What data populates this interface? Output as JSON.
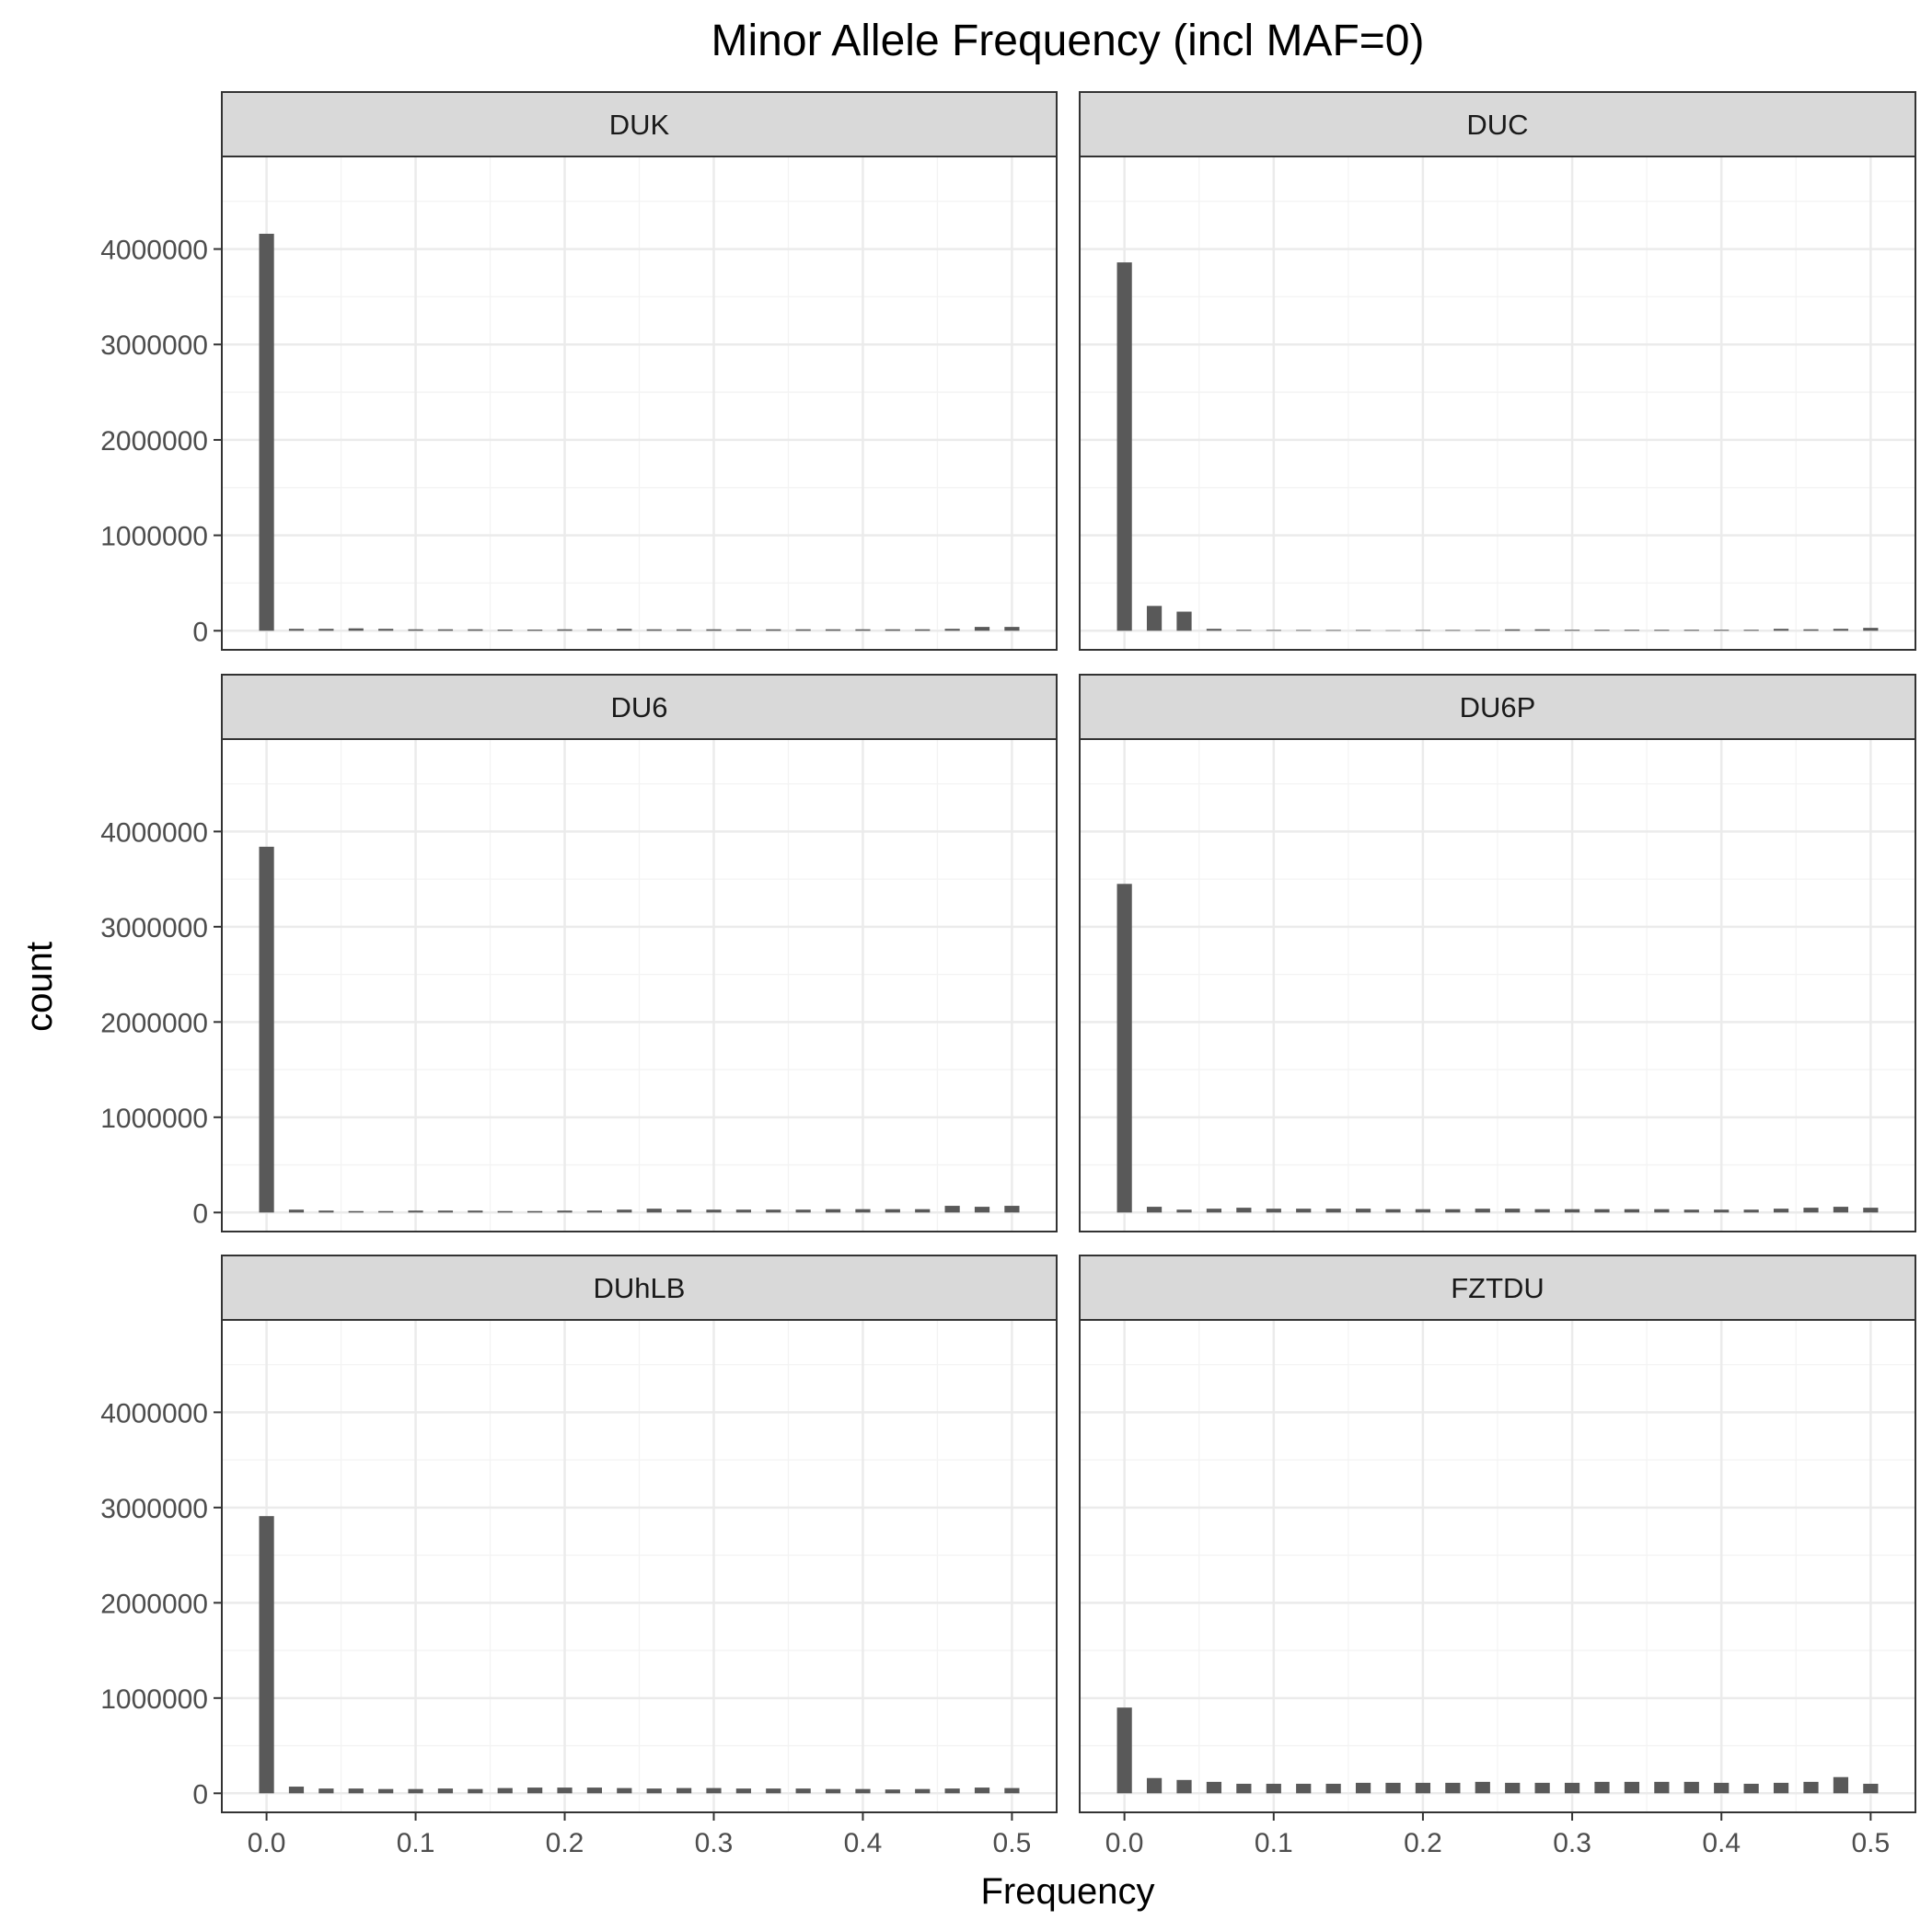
{
  "chart_data": {
    "type": "bar",
    "title": "Minor Allele Frequency (incl MAF=0)",
    "xlabel": "Frequency",
    "ylabel": "count",
    "xlim": [
      -0.03,
      0.53
    ],
    "ylim": [
      -200000,
      4970000
    ],
    "xticks": [
      0.0,
      0.1,
      0.2,
      0.3,
      0.4,
      0.5
    ],
    "xtick_labels": [
      "0.0",
      "0.1",
      "0.2",
      "0.3",
      "0.4",
      "0.5"
    ],
    "yticks": [
      0,
      1000000,
      2000000,
      3000000,
      4000000
    ],
    "ytick_labels": [
      "0",
      "1000000",
      "2000000",
      "3000000",
      "4000000"
    ],
    "grid": true,
    "bin_width": 0.01,
    "x": [
      0.0,
      0.02,
      0.04,
      0.06,
      0.08,
      0.1,
      0.12,
      0.14,
      0.16,
      0.18,
      0.2,
      0.22,
      0.24,
      0.26,
      0.28,
      0.3,
      0.32,
      0.34,
      0.36,
      0.38,
      0.4,
      0.42,
      0.44,
      0.46,
      0.48,
      0.5
    ],
    "panels": [
      {
        "name": "DUK",
        "values": [
          4160000,
          20000,
          20000,
          25000,
          20000,
          15000,
          15000,
          15000,
          12000,
          12000,
          15000,
          18000,
          20000,
          15000,
          15000,
          15000,
          15000,
          15000,
          15000,
          15000,
          15000,
          15000,
          15000,
          20000,
          40000,
          40000
        ]
      },
      {
        "name": "DUC",
        "values": [
          3860000,
          260000,
          200000,
          20000,
          10000,
          8000,
          8000,
          8000,
          8000,
          5000,
          8000,
          8000,
          8000,
          15000,
          15000,
          10000,
          10000,
          10000,
          10000,
          10000,
          10000,
          10000,
          20000,
          15000,
          20000,
          30000
        ]
      },
      {
        "name": "DU6",
        "values": [
          3840000,
          30000,
          20000,
          15000,
          15000,
          20000,
          20000,
          20000,
          15000,
          15000,
          20000,
          20000,
          30000,
          40000,
          30000,
          30000,
          30000,
          30000,
          30000,
          35000,
          35000,
          35000,
          35000,
          70000,
          60000,
          70000
        ]
      },
      {
        "name": "DU6P",
        "values": [
          3450000,
          60000,
          30000,
          40000,
          50000,
          40000,
          40000,
          40000,
          40000,
          35000,
          35000,
          35000,
          40000,
          40000,
          35000,
          35000,
          35000,
          35000,
          35000,
          30000,
          30000,
          30000,
          40000,
          50000,
          60000,
          50000
        ]
      },
      {
        "name": "DUhLB",
        "values": [
          2910000,
          70000,
          50000,
          50000,
          45000,
          45000,
          50000,
          45000,
          55000,
          60000,
          60000,
          60000,
          55000,
          50000,
          55000,
          55000,
          50000,
          50000,
          50000,
          45000,
          45000,
          40000,
          45000,
          50000,
          60000,
          55000
        ]
      },
      {
        "name": "FZTDU",
        "values": [
          900000,
          160000,
          140000,
          120000,
          100000,
          100000,
          100000,
          100000,
          110000,
          110000,
          110000,
          110000,
          120000,
          110000,
          110000,
          110000,
          120000,
          120000,
          120000,
          120000,
          110000,
          100000,
          110000,
          120000,
          170000,
          100000
        ]
      }
    ]
  }
}
